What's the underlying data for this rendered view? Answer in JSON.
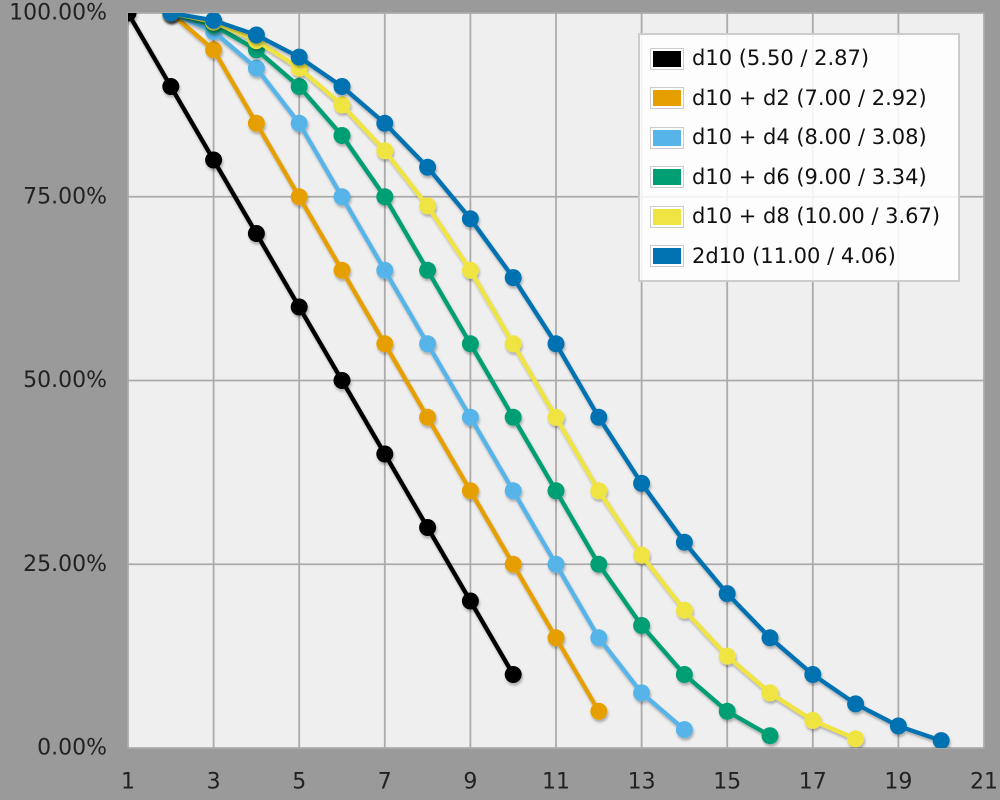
{
  "chart_data": {
    "type": "line",
    "title": "",
    "xlabel": "",
    "ylabel": "",
    "xlim": [
      1,
      21
    ],
    "ylim": [
      0,
      100
    ],
    "x_ticks": [
      1,
      3,
      5,
      7,
      9,
      11,
      13,
      15,
      17,
      19,
      21
    ],
    "y_ticks": [
      {
        "value": 0,
        "label": "0.00%"
      },
      {
        "value": 25,
        "label": "25.00%"
      },
      {
        "value": 50,
        "label": "50.00%"
      },
      {
        "value": 75,
        "label": "75.00%"
      },
      {
        "value": 100,
        "label": "100.00%"
      }
    ],
    "grid": true,
    "legend_position": "top-right",
    "y_meaning": "probability of rolling at least x",
    "series": [
      {
        "name": "d10 (5.50 / 2.87)",
        "color": "#000000",
        "points": [
          [
            1,
            100
          ],
          [
            2,
            90
          ],
          [
            3,
            80
          ],
          [
            4,
            70
          ],
          [
            5,
            60
          ],
          [
            6,
            50
          ],
          [
            7,
            40
          ],
          [
            8,
            30
          ],
          [
            9,
            20
          ],
          [
            10,
            10
          ]
        ]
      },
      {
        "name": "d10 + d2 (7.00 / 2.92)",
        "color": "#E69F00",
        "points": [
          [
            2,
            100
          ],
          [
            3,
            95
          ],
          [
            4,
            85
          ],
          [
            5,
            75
          ],
          [
            6,
            65
          ],
          [
            7,
            55
          ],
          [
            8,
            45
          ],
          [
            9,
            35
          ],
          [
            10,
            25
          ],
          [
            11,
            15
          ],
          [
            12,
            5
          ]
        ]
      },
      {
        "name": "d10 + d4 (8.00 / 3.08)",
        "color": "#56B4E9",
        "points": [
          [
            2,
            100
          ],
          [
            3,
            97.5
          ],
          [
            4,
            92.5
          ],
          [
            5,
            85
          ],
          [
            6,
            75
          ],
          [
            7,
            65
          ],
          [
            8,
            55
          ],
          [
            9,
            45
          ],
          [
            10,
            35
          ],
          [
            11,
            25
          ],
          [
            12,
            15
          ],
          [
            13,
            7.5
          ],
          [
            14,
            2.5
          ]
        ]
      },
      {
        "name": "d10 + d6 (9.00 / 3.34)",
        "color": "#009E73",
        "points": [
          [
            2,
            100
          ],
          [
            3,
            98.33
          ],
          [
            4,
            95
          ],
          [
            5,
            90
          ],
          [
            6,
            83.33
          ],
          [
            7,
            75
          ],
          [
            8,
            65
          ],
          [
            9,
            55
          ],
          [
            10,
            45
          ],
          [
            11,
            35
          ],
          [
            12,
            25
          ],
          [
            13,
            16.67
          ],
          [
            14,
            10
          ],
          [
            15,
            5
          ],
          [
            16,
            1.67
          ]
        ]
      },
      {
        "name": "d10 + d8 (10.00 / 3.67)",
        "color": "#F0E442",
        "points": [
          [
            2,
            100
          ],
          [
            3,
            98.75
          ],
          [
            4,
            96.25
          ],
          [
            5,
            92.5
          ],
          [
            6,
            87.5
          ],
          [
            7,
            81.25
          ],
          [
            8,
            73.75
          ],
          [
            9,
            65
          ],
          [
            10,
            55
          ],
          [
            11,
            45
          ],
          [
            12,
            35
          ],
          [
            13,
            26.25
          ],
          [
            14,
            18.75
          ],
          [
            15,
            12.5
          ],
          [
            16,
            7.5
          ],
          [
            17,
            3.75
          ],
          [
            18,
            1.25
          ]
        ]
      },
      {
        "name": "2d10 (11.00 / 4.06)",
        "color": "#0072B2",
        "points": [
          [
            2,
            100
          ],
          [
            3,
            99
          ],
          [
            4,
            97
          ],
          [
            5,
            94
          ],
          [
            6,
            90
          ],
          [
            7,
            85
          ],
          [
            8,
            79
          ],
          [
            9,
            72
          ],
          [
            10,
            64
          ],
          [
            11,
            55
          ],
          [
            12,
            45
          ],
          [
            13,
            36
          ],
          [
            14,
            28
          ],
          [
            15,
            21
          ],
          [
            16,
            15
          ],
          [
            17,
            10
          ],
          [
            18,
            6
          ],
          [
            19,
            3
          ],
          [
            20,
            1
          ]
        ]
      }
    ],
    "colors": {
      "outer_background": "#9A9A9A",
      "plot_background": "#EFEFEF",
      "gridline": "#ABABAB",
      "tick_label": "#222222",
      "legend_background": "rgba(255,255,255,0.85)",
      "legend_border": "#CCCCCC",
      "legend_text": "#111111",
      "swatch_border": "#CCCCCC"
    }
  }
}
